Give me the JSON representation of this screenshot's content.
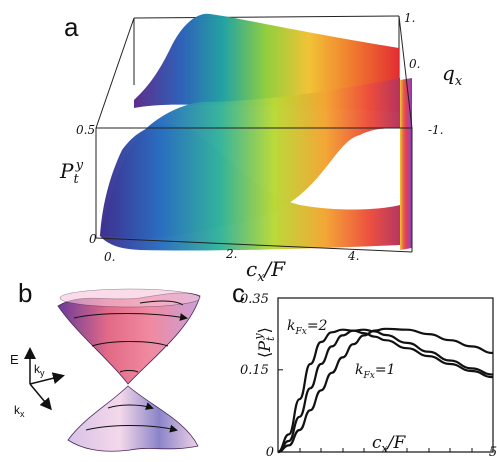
{
  "panels": {
    "a": {
      "label": "a"
    },
    "b": {
      "label": "b",
      "axes": {
        "e": "E",
        "ky": "k",
        "ky_sub": "y",
        "kx": "k",
        "kx_sub": "x"
      }
    },
    "c": {
      "label": "c"
    }
  },
  "chart_data": [
    {
      "panel": "a",
      "type": "surface",
      "zlabel": {
        "main": "P",
        "sub": "t",
        "sup": "y"
      },
      "xlabel": {
        "main": "c",
        "sub": "x",
        "rest": "/F"
      },
      "ylabel": {
        "main": "q",
        "sub": "x"
      },
      "x_ticks": [
        "0.",
        "2.",
        "4."
      ],
      "y_ticks": [
        "1.",
        "0.",
        "-1."
      ],
      "z_ticks": [
        "0",
        "0.5"
      ],
      "x_range": [
        0,
        5
      ],
      "y_range": [
        -1,
        1
      ],
      "z_range": [
        0,
        0.5
      ],
      "colormap": "rainbow"
    },
    {
      "panel": "c",
      "type": "line",
      "ylabel": {
        "main": "P",
        "sub": "t",
        "sup": "y"
      },
      "xlabel": {
        "main": "c",
        "sub": "x",
        "rest": "/F"
      },
      "x_ticks": [
        "0",
        "5"
      ],
      "y_ticks": [
        "0.35",
        "0.15"
      ],
      "xlim": [
        0,
        5
      ],
      "ylim": [
        0,
        0.35
      ],
      "series": [
        {
          "name": "k_{Fx}=2",
          "label_main": "k",
          "label_sub": "Fx",
          "label_rest": "=2",
          "x": [
            0,
            0.25,
            0.5,
            0.75,
            1,
            1.25,
            1.5,
            1.75,
            2,
            2.25,
            2.5,
            3,
            3.5,
            4,
            4.5,
            5
          ],
          "y": [
            0,
            0.04,
            0.12,
            0.2,
            0.25,
            0.272,
            0.278,
            0.276,
            0.27,
            0.262,
            0.254,
            0.236,
            0.218,
            0.2,
            0.184,
            0.17
          ]
        },
        {
          "x": [
            0,
            0.25,
            0.5,
            0.75,
            1,
            1.25,
            1.5,
            1.75,
            2,
            2.25,
            2.5,
            3,
            3.5,
            4,
            4.5,
            5
          ],
          "y": [
            0,
            0.025,
            0.08,
            0.145,
            0.2,
            0.24,
            0.265,
            0.276,
            0.278,
            0.274,
            0.266,
            0.248,
            0.228,
            0.208,
            0.19,
            0.176
          ]
        },
        {
          "name": "k_{Fx}=1",
          "label_main": "k",
          "label_sub": "Fx",
          "label_rest": "=1",
          "x": [
            0,
            0.25,
            0.5,
            0.75,
            1,
            1.25,
            1.5,
            1.75,
            2,
            2.25,
            2.5,
            3,
            3.5,
            4,
            4.5,
            5
          ],
          "y": [
            0,
            0.015,
            0.05,
            0.095,
            0.14,
            0.18,
            0.215,
            0.245,
            0.265,
            0.276,
            0.28,
            0.278,
            0.268,
            0.254,
            0.24,
            0.225
          ]
        }
      ]
    }
  ]
}
